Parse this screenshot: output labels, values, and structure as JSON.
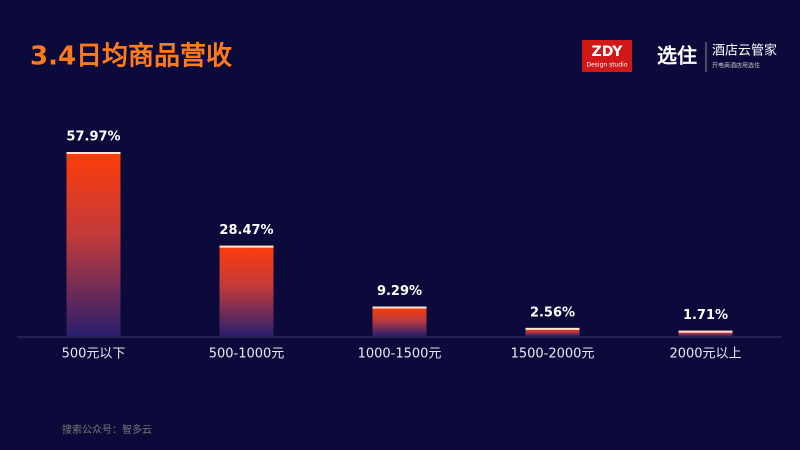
{
  "chart_data": {
    "type": "bar",
    "title": "3.4日均商品营收",
    "categories": [
      "500元以下",
      "500-1000元",
      "1000-1500元",
      "1500-2000元",
      "2000元以上"
    ],
    "values": [
      57.97,
      28.47,
      9.29,
      2.56,
      1.71
    ],
    "value_labels": [
      "57.97%",
      "28.47%",
      "9.29%",
      "2.56%",
      "1.71%"
    ],
    "color": "#ff3c0a"
  },
  "branding": {
    "logo_main": "ZDY",
    "logo_sub": "Design studio",
    "brand": "选住",
    "brand_name": "酒店云管家",
    "brand_slogan": "开电商酒店用选住"
  },
  "footer": {
    "text": "搜索公众号：智多云"
  }
}
